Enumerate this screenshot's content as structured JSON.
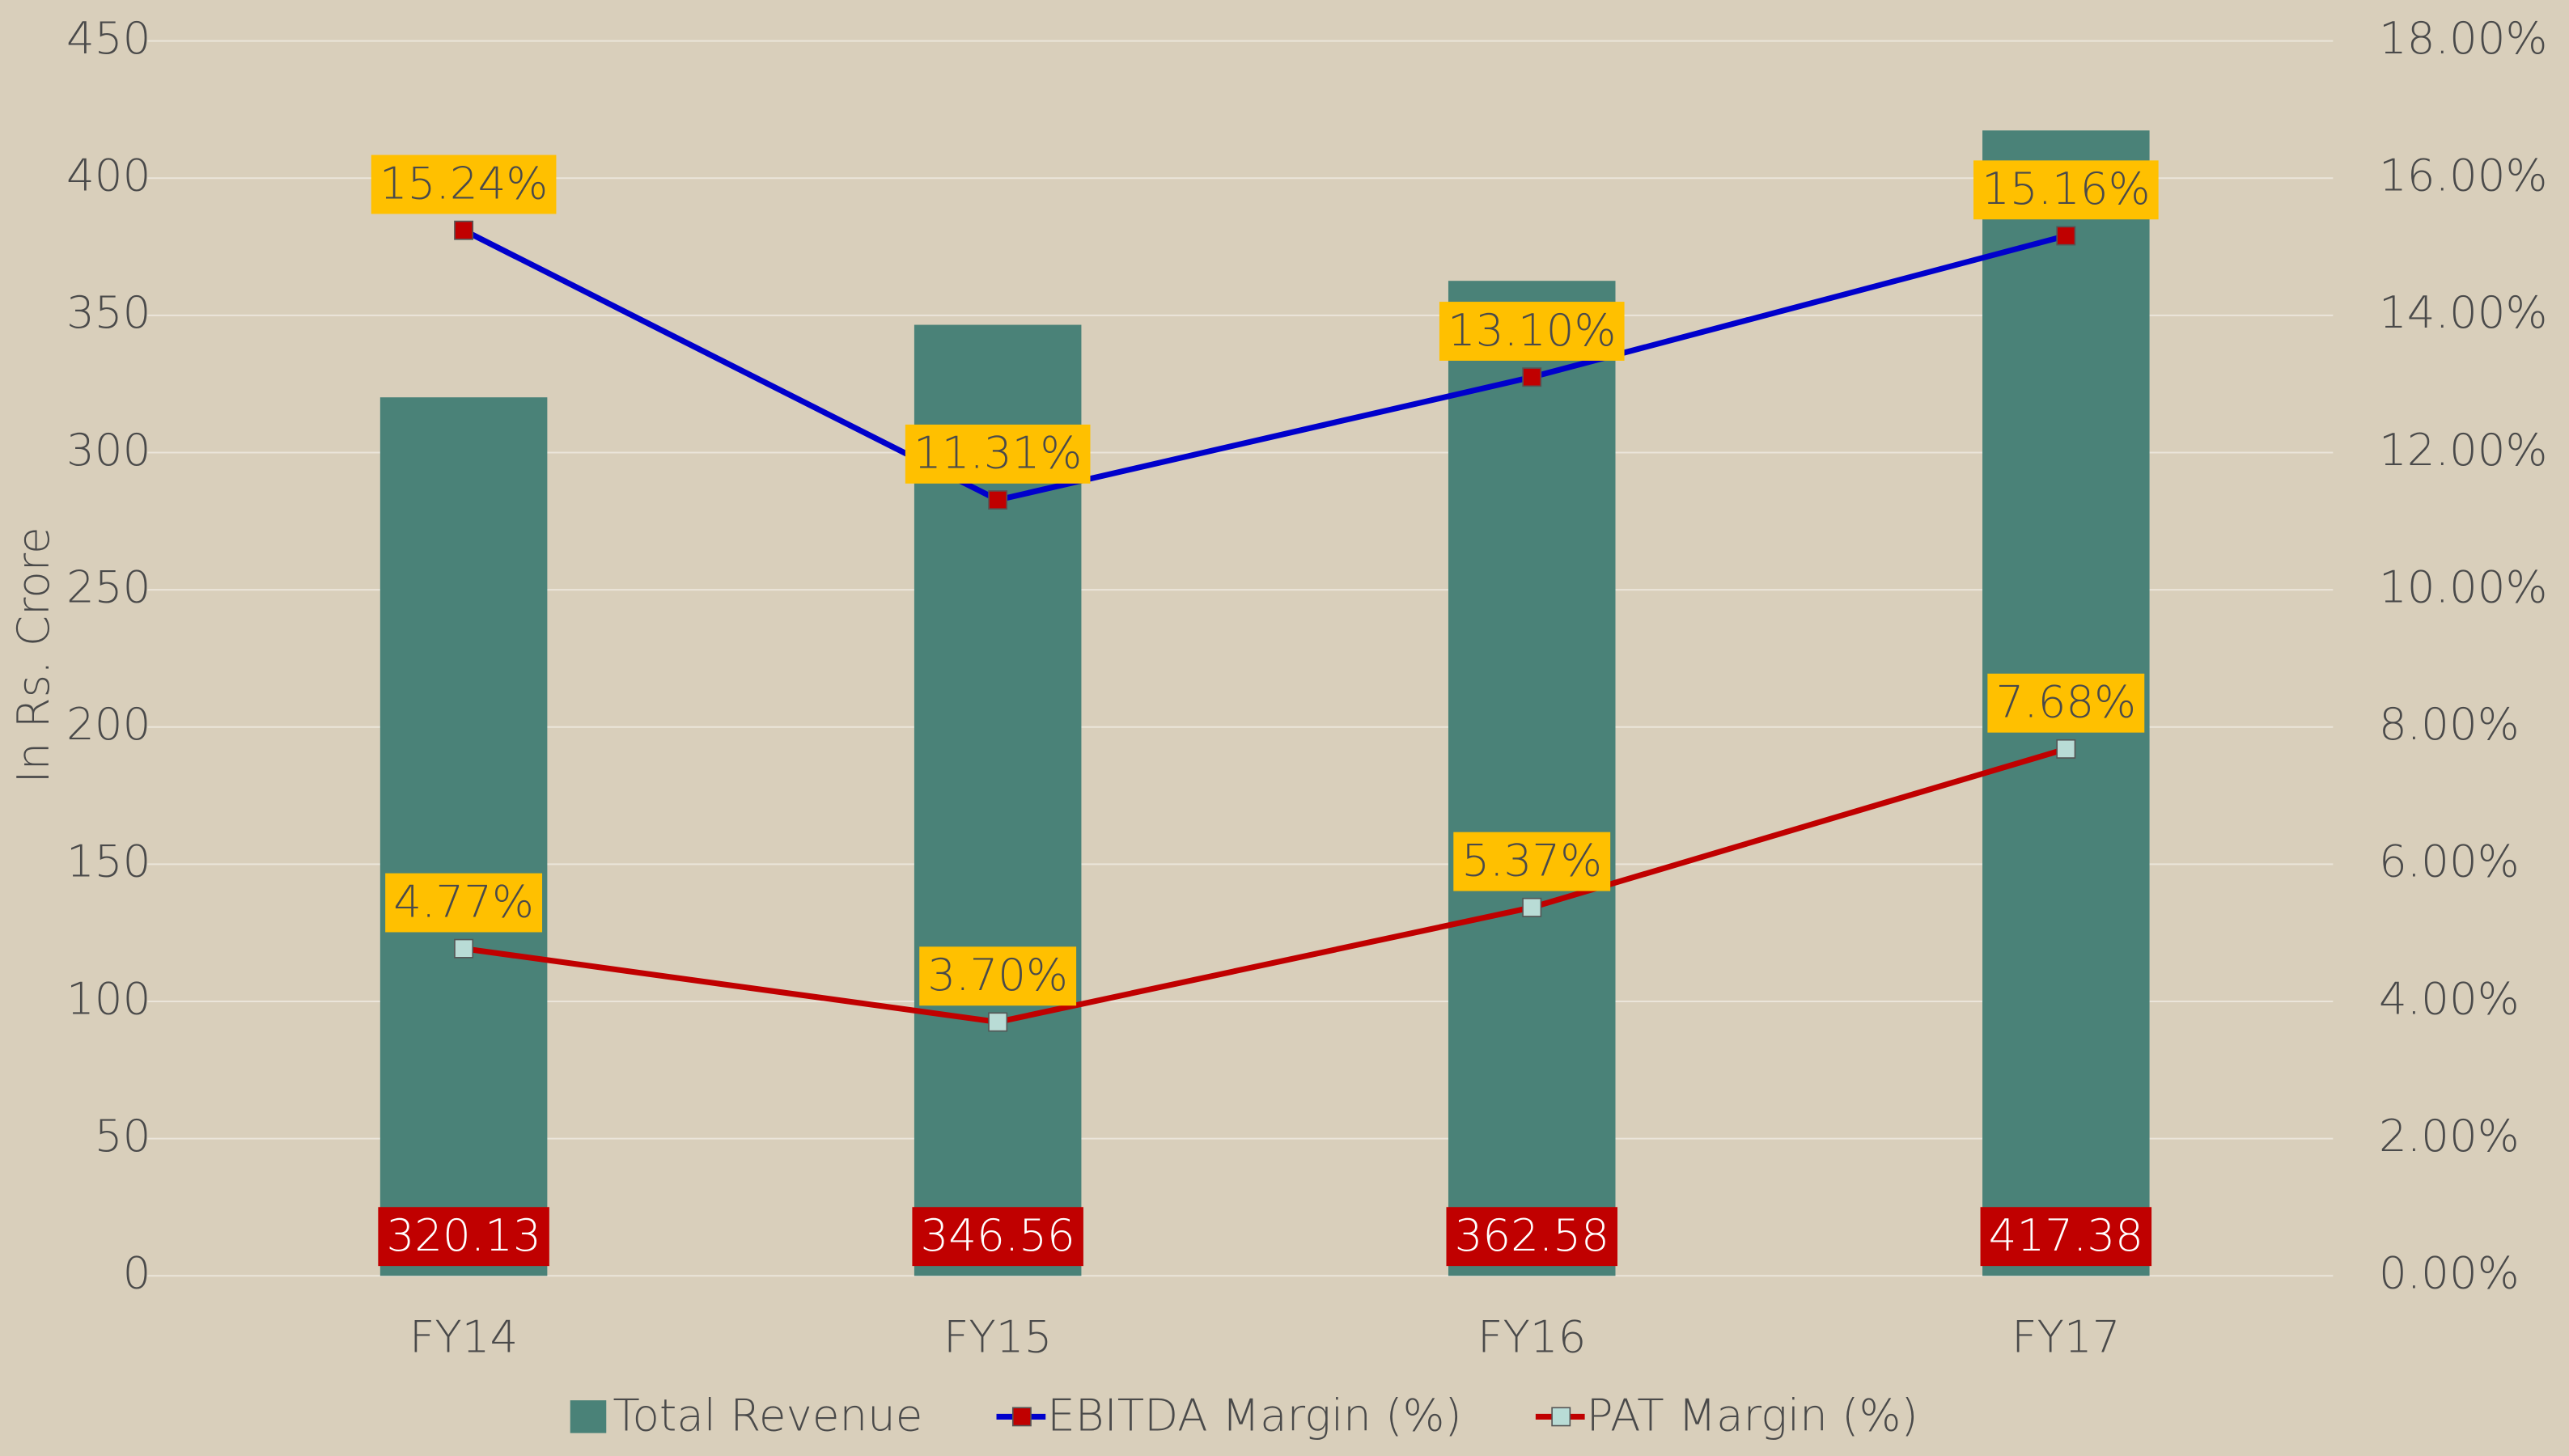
{
  "chart_data": {
    "type": "bar",
    "categories": [
      "FY14",
      "FY15",
      "FY16",
      "FY17"
    ],
    "series": [
      {
        "name": "Total Revenue",
        "type": "bar",
        "color": "#4a8278",
        "values": [
          320.13,
          346.56,
          362.58,
          417.38
        ]
      },
      {
        "name": "EBITDA Margin (%)",
        "type": "line",
        "axis": "y2",
        "color": "#0000cc",
        "marker_color": "#c00000",
        "values": [
          15.24,
          11.31,
          13.1,
          15.16
        ],
        "value_labels": [
          "15.24%",
          "11.31%",
          "13.10%",
          "15.16%"
        ]
      },
      {
        "name": "PAT Margin (%)",
        "type": "line",
        "axis": "y2",
        "color": "#c00000",
        "marker_color": "#b9dcd6",
        "values": [
          4.77,
          3.7,
          5.37,
          7.68
        ],
        "value_labels": [
          "4.77%",
          "3.70%",
          "5.37%",
          "7.68%"
        ]
      }
    ],
    "y_label": "In Rs. Crore",
    "ylim": [
      0,
      450
    ],
    "yticks": [
      0,
      50,
      100,
      150,
      200,
      250,
      300,
      350,
      400,
      450
    ],
    "y2lim": [
      0,
      18
    ],
    "y2ticks": [
      {
        "value": 0,
        "label": "0.00%"
      },
      {
        "value": 2,
        "label": "2.00%"
      },
      {
        "value": 4,
        "label": "4.00%"
      },
      {
        "value": 6,
        "label": "6.00%"
      },
      {
        "value": 8,
        "label": "8.00%"
      },
      {
        "value": 10,
        "label": "10.00%"
      },
      {
        "value": 12,
        "label": "12.00%"
      },
      {
        "value": 14,
        "label": "14.00%"
      },
      {
        "value": 16,
        "label": "16.00%"
      },
      {
        "value": 18,
        "label": "18.00%"
      }
    ],
    "grid": true,
    "legend": "bottom"
  }
}
